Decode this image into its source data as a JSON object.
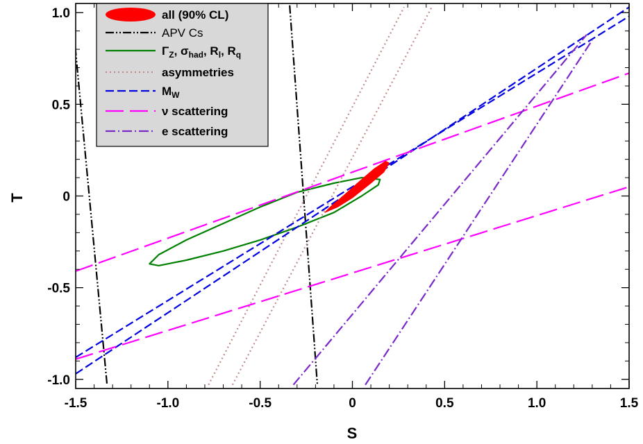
{
  "chart_data": {
    "type": "line",
    "xlabel": "S",
    "ylabel": "T",
    "xlim": [
      -1.5,
      1.5
    ],
    "ylim": [
      -1.05,
      1.05
    ],
    "xticks": [
      -1.5,
      -1.0,
      -0.5,
      0,
      0.5,
      1.0,
      1.5
    ],
    "xtick_labels": [
      "-1.5",
      "-1.0",
      "-0.5",
      "0",
      "0.5",
      "1.0",
      "1.5"
    ],
    "yticks": [
      -1.0,
      -0.5,
      0,
      0.5,
      1.0
    ],
    "ytick_labels": [
      "-1.0",
      "-0.5",
      "0",
      "0.5",
      "1.0"
    ],
    "grid": false,
    "legend_position": "top-left",
    "series": [
      {
        "name": "all (90% CL)",
        "kind": "filled-ellipse",
        "color": "#ff0000",
        "contour": [
          [
            -0.15,
            -0.09
          ],
          [
            -0.12,
            -0.06
          ],
          [
            -0.05,
            0.0
          ],
          [
            0.05,
            0.09
          ],
          [
            0.12,
            0.15
          ],
          [
            0.18,
            0.19
          ],
          [
            0.2,
            0.18
          ],
          [
            0.17,
            0.13
          ],
          [
            0.1,
            0.07
          ],
          [
            0.0,
            -0.01
          ],
          [
            -0.08,
            -0.06
          ],
          [
            -0.15,
            -0.09
          ]
        ]
      },
      {
        "name": "APV Cs",
        "kind": "band",
        "color": "#000000",
        "dash": "dash-dot-dot",
        "lines": [
          [
            [
              -1.52,
              1.0
            ],
            [
              -1.33,
              -1.03
            ]
          ],
          [
            [
              -0.34,
              1.04
            ],
            [
              -0.19,
              -1.03
            ]
          ]
        ]
      },
      {
        "name": "ΓZ, σhad, Rl, Rq",
        "kind": "ellipse",
        "color": "#008000",
        "contour": [
          [
            -1.1,
            -0.37
          ],
          [
            -1.05,
            -0.32
          ],
          [
            -0.9,
            -0.24
          ],
          [
            -0.7,
            -0.15
          ],
          [
            -0.5,
            -0.06
          ],
          [
            -0.3,
            0.02
          ],
          [
            -0.1,
            0.07
          ],
          [
            0.05,
            0.1
          ],
          [
            0.15,
            0.09
          ],
          [
            0.14,
            0.06
          ],
          [
            0.05,
            0.0
          ],
          [
            -0.1,
            -0.09
          ],
          [
            -0.3,
            -0.17
          ],
          [
            -0.5,
            -0.24
          ],
          [
            -0.7,
            -0.3
          ],
          [
            -0.9,
            -0.35
          ],
          [
            -1.05,
            -0.38
          ],
          [
            -1.1,
            -0.37
          ]
        ]
      },
      {
        "name": "asymmetries",
        "kind": "band",
        "color": "#c08c8c",
        "dash": "dotted",
        "lines": [
          [
            [
              -0.78,
              -1.03
            ],
            [
              0.28,
              1.03
            ]
          ],
          [
            [
              -0.65,
              -1.03
            ],
            [
              0.43,
              1.03
            ]
          ]
        ]
      },
      {
        "name": "MW",
        "kind": "band",
        "color": "#0000e0",
        "dash": "dashed",
        "lines": [
          [
            [
              -1.5,
              -0.97
            ],
            [
              1.5,
              1.03
            ]
          ],
          [
            [
              -1.5,
              -0.88
            ],
            [
              1.5,
              0.98
            ]
          ]
        ]
      },
      {
        "name": "ν scattering",
        "kind": "band",
        "color": "#ff00ff",
        "dash": "long-dash",
        "lines": [
          [
            [
              -1.5,
              -0.41
            ],
            [
              1.5,
              0.67
            ]
          ],
          [
            [
              -1.5,
              -0.89
            ],
            [
              1.5,
              0.05
            ]
          ]
        ]
      },
      {
        "name": "e scattering",
        "kind": "band",
        "color": "#7a28c8",
        "dash": "dash-dot",
        "lines": [
          [
            [
              -0.32,
              -1.03
            ],
            [
              1.27,
              0.88
            ]
          ],
          [
            [
              0.07,
              -1.03
            ],
            [
              1.3,
              0.85
            ]
          ]
        ]
      }
    ]
  },
  "legend": [
    {
      "label": "all (90% CL)",
      "bold": true
    },
    {
      "label": "APV Cs",
      "bold": false
    },
    {
      "label_parts": [
        "Γ",
        "Z",
        ", σ",
        "had",
        ", R",
        "l",
        ", R",
        "q"
      ],
      "bold": true
    },
    {
      "label": "asymmetries",
      "bold": true
    },
    {
      "label_parts": [
        "M",
        "W"
      ],
      "bold": true
    },
    {
      "label": "ν scattering",
      "bold": true
    },
    {
      "label": "e scattering",
      "bold": true
    }
  ],
  "colors": {
    "legend_bg": "#d8d8d8",
    "axis": "#000000"
  }
}
